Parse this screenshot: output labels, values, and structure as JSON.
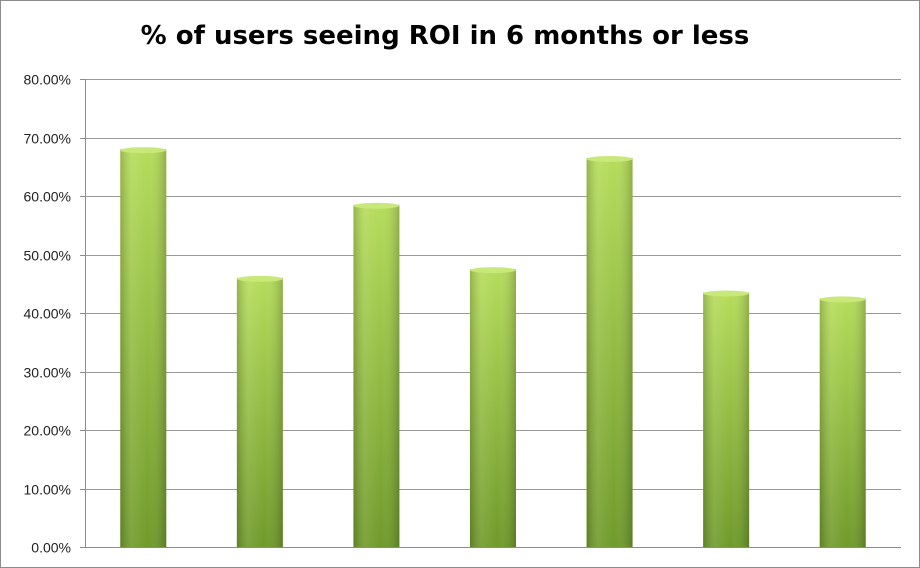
{
  "chart_data": {
    "type": "bar",
    "title": "% of users seeing ROI in 6 months or less",
    "xlabel": "",
    "ylabel": "",
    "categories": [
      "",
      "",
      "",
      "",
      "",
      "",
      ""
    ],
    "values": [
      0.68,
      0.46,
      0.585,
      0.475,
      0.665,
      0.435,
      0.425
    ],
    "ylim": [
      0,
      0.8
    ],
    "yticks": [
      0,
      0.1,
      0.2,
      0.3,
      0.4,
      0.5,
      0.6,
      0.7,
      0.8
    ],
    "ytick_labels": [
      "0.00%",
      "10.00%",
      "20.00%",
      "30.00%",
      "40.00%",
      "50.00%",
      "60.00%",
      "70.00%",
      "80.00%"
    ],
    "grid": true,
    "legend": "none",
    "colors": {
      "bar_light": "#b5dc5a",
      "bar_dark": "#6f9a2a",
      "bar_top": "#c8e87a",
      "gridline": "#9a9a9a",
      "axis": "#8c8c8c"
    }
  }
}
